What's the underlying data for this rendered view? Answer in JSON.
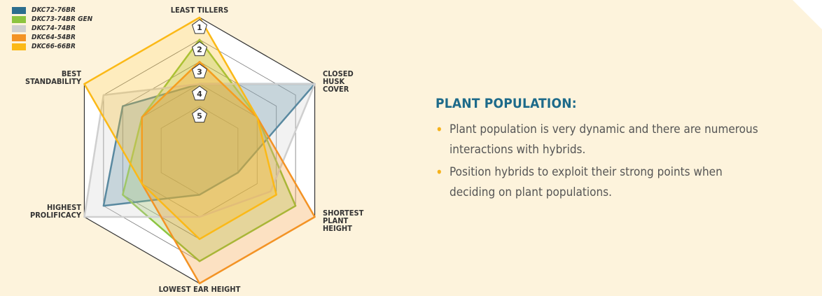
{
  "chart_data": {
    "type": "radar",
    "categories": [
      "LEAST TILLERS",
      "CLOSED HUSK COVER",
      "SHORTEST PLANT HEIGHT",
      "LOWEST EAR HEIGHT",
      "HIGHEST PROLIFICACY",
      "BEST STANDABILITY"
    ],
    "rlim": [
      7,
      1
    ],
    "rticks": [
      1,
      2,
      3,
      4,
      5
    ],
    "legend": "top-left",
    "series": [
      {
        "name": "DKC72-76BR",
        "color": "#2c6e8e",
        "values": [
          4,
          1,
          5,
          5,
          2,
          3
        ]
      },
      {
        "name": "DKC73-74BR GEN",
        "color": "#8cc43f",
        "values": [
          2,
          4,
          2,
          2,
          3,
          4
        ]
      },
      {
        "name": "DKC74-74BR",
        "color": "#cfcfcf",
        "values": [
          4,
          1,
          3.3,
          4,
          1,
          2
        ]
      },
      {
        "name": "DKC64-54BR",
        "color": "#f39325",
        "values": [
          3,
          4,
          1,
          1,
          4,
          4
        ]
      },
      {
        "name": "DKC66-66BR",
        "color": "#fbb917",
        "values": [
          1,
          4,
          3,
          3,
          4,
          1
        ]
      }
    ]
  },
  "panel": {
    "heading": "PLANT POPULATION:",
    "bullets": [
      "Plant population is very dynamic and there are numerous interactions with hybrids.",
      "Position hybrids to exploit their strong points when deciding on plant populations."
    ]
  }
}
